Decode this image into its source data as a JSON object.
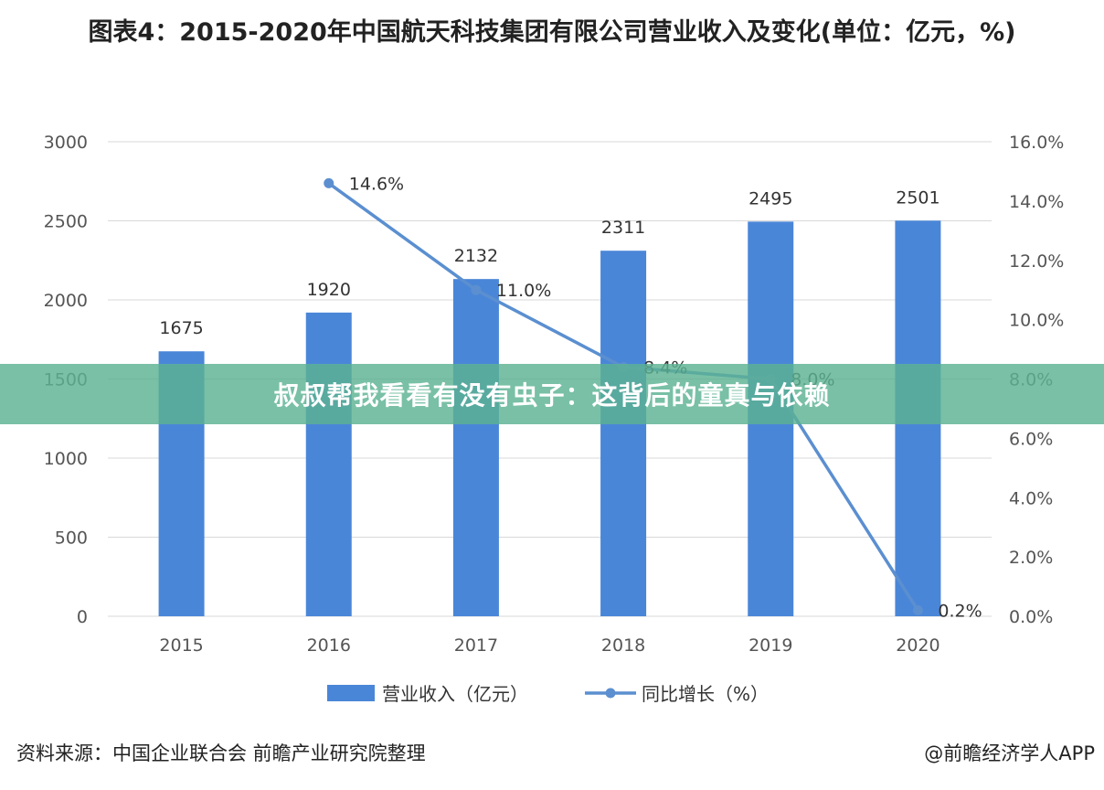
{
  "title": "图表4：2015-2020年中国航天科技集团有限公司营业收入及变化(单位：亿元，%)",
  "source": "资料来源：中国企业联合会 前瞻产业研究院整理",
  "credit": "@前瞻经济学人APP",
  "banner": "叔叔帮我看看有没有虫子：这背后的童真与依赖",
  "colors": {
    "bar": "#4A86D8",
    "line": "#5B8FD0",
    "grid": "#D9D9D9",
    "banner": "#5CB293"
  },
  "chart_data": {
    "type": "bar",
    "categories": [
      "2015",
      "2016",
      "2017",
      "2018",
      "2019",
      "2020"
    ],
    "series": [
      {
        "name": "营业收入（亿元）",
        "type": "bar",
        "axis": "left",
        "values": [
          1675,
          1920,
          2132,
          2311,
          2495,
          2501
        ],
        "labels": [
          "1675",
          "1920",
          "2132",
          "2311",
          "2495",
          "2501"
        ]
      },
      {
        "name": "同比增长（%）",
        "type": "line",
        "axis": "right",
        "values": [
          null,
          14.6,
          11.0,
          8.4,
          8.0,
          0.2
        ],
        "labels": [
          "",
          "14.6%",
          "11.0%",
          "8.4%",
          "8.0%",
          "0.2%"
        ]
      }
    ],
    "y_left": {
      "min": 0,
      "max": 3000,
      "ticks": [
        0,
        500,
        1000,
        1500,
        2000,
        2500,
        3000
      ],
      "tick_labels": [
        "0",
        "500",
        "1000",
        "1500",
        "2000",
        "2500",
        "3000"
      ]
    },
    "y_right": {
      "min": 0,
      "max": 16,
      "ticks": [
        0,
        2,
        4,
        6,
        8,
        10,
        12,
        14,
        16
      ],
      "tick_labels": [
        "0.0%",
        "2.0%",
        "4.0%",
        "6.0%",
        "8.0%",
        "10.0%",
        "12.0%",
        "14.0%",
        "16.0%"
      ]
    },
    "grid": true,
    "legend": "bottom"
  }
}
